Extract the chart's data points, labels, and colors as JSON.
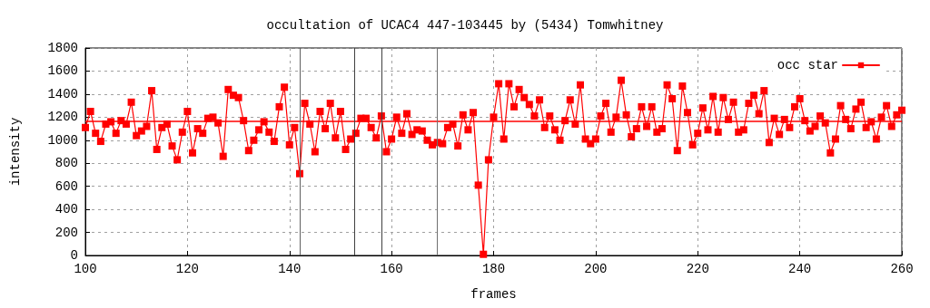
{
  "chart_data": {
    "type": "line",
    "title": "occultation of UCAC4 447-103445 by (5434) Tomwhitney",
    "xlabel": "frames",
    "ylabel": "intensity",
    "x": [
      100,
      101,
      102,
      103,
      104,
      105,
      106,
      107,
      108,
      109,
      110,
      111,
      112,
      113,
      114,
      115,
      116,
      117,
      118,
      119,
      120,
      121,
      122,
      123,
      124,
      125,
      126,
      127,
      128,
      129,
      130,
      131,
      132,
      133,
      134,
      135,
      136,
      137,
      138,
      139,
      140,
      141,
      142,
      143,
      144,
      145,
      146,
      147,
      148,
      149,
      150,
      151,
      152,
      153,
      154,
      155,
      156,
      157,
      158,
      159,
      160,
      161,
      162,
      163,
      164,
      165,
      166,
      167,
      168,
      169,
      170,
      171,
      172,
      173,
      174,
      175,
      176,
      177,
      178,
      179,
      180,
      181,
      182,
      183,
      184,
      185,
      186,
      187,
      188,
      189,
      190,
      191,
      192,
      193,
      194,
      195,
      196,
      197,
      198,
      199,
      200,
      201,
      202,
      203,
      204,
      205,
      206,
      207,
      208,
      209,
      210,
      211,
      212,
      213,
      214,
      215,
      216,
      217,
      218,
      219,
      220,
      221,
      222,
      223,
      224,
      225,
      226,
      227,
      228,
      229,
      230,
      231,
      232,
      233,
      234,
      235,
      236,
      237,
      238,
      239,
      240,
      241,
      242,
      243,
      244,
      245,
      246,
      247,
      248,
      249,
      250,
      251,
      252,
      253,
      254,
      255,
      256,
      257,
      258,
      259,
      260
    ],
    "series": [
      {
        "name": "occ star",
        "color": "#ff0000",
        "values": [
          1110,
          1250,
          1060,
          990,
          1140,
          1160,
          1060,
          1170,
          1140,
          1330,
          1040,
          1080,
          1120,
          1430,
          920,
          1110,
          1140,
          950,
          830,
          1070,
          1250,
          890,
          1100,
          1060,
          1190,
          1200,
          1150,
          860,
          1440,
          1390,
          1370,
          1170,
          910,
          1000,
          1090,
          1160,
          1070,
          990,
          1290,
          1460,
          960,
          1110,
          710,
          1320,
          1140,
          900,
          1250,
          1100,
          1320,
          1020,
          1250,
          920,
          1010,
          1060,
          1190,
          1190,
          1110,
          1020,
          1210,
          900,
          1010,
          1200,
          1060,
          1230,
          1050,
          1090,
          1080,
          1000,
          960,
          980,
          970,
          1110,
          1140,
          950,
          1220,
          1090,
          1240,
          610,
          10,
          830,
          1200,
          1490,
          1010,
          1490,
          1290,
          1440,
          1370,
          1310,
          1210,
          1350,
          1110,
          1210,
          1090,
          1000,
          1170,
          1350,
          1140,
          1480,
          1010,
          970,
          1010,
          1210,
          1320,
          1070,
          1200,
          1520,
          1220,
          1030,
          1100,
          1290,
          1120,
          1290,
          1070,
          1100,
          1480,
          1360,
          910,
          1470,
          1240,
          960,
          1060,
          1280,
          1090,
          1380,
          1070,
          1370,
          1180,
          1330,
          1070,
          1090,
          1320,
          1390,
          1230,
          1430,
          980,
          1190,
          1050,
          1180,
          1110,
          1290,
          1360,
          1170,
          1080,
          1120,
          1210,
          1150,
          890,
          1010,
          1300,
          1180,
          1100,
          1270,
          1330,
          1110,
          1160,
          1010,
          1200,
          1300,
          1120,
          1220,
          1260
        ]
      }
    ],
    "xlim": [
      100,
      260
    ],
    "xticks": [
      100,
      120,
      140,
      160,
      180,
      200,
      220,
      240,
      260
    ],
    "ylim": [
      0,
      1800
    ],
    "yticks": [
      0,
      200,
      400,
      600,
      800,
      1000,
      1200,
      1400,
      1600,
      1800
    ],
    "ref_lines": [
      {
        "axis": "y",
        "value": 1165,
        "color": "#ff0000"
      },
      {
        "axis": "x",
        "value": 142,
        "color": "#606060"
      },
      {
        "axis": "x",
        "value": 152.8,
        "color": "#404040"
      },
      {
        "axis": "x",
        "value": 158,
        "color": "#404040"
      },
      {
        "axis": "x",
        "value": 168.9,
        "color": "#707070"
      }
    ],
    "grid": true,
    "legend": "top right",
    "marker": "square",
    "line_style": "solid"
  }
}
